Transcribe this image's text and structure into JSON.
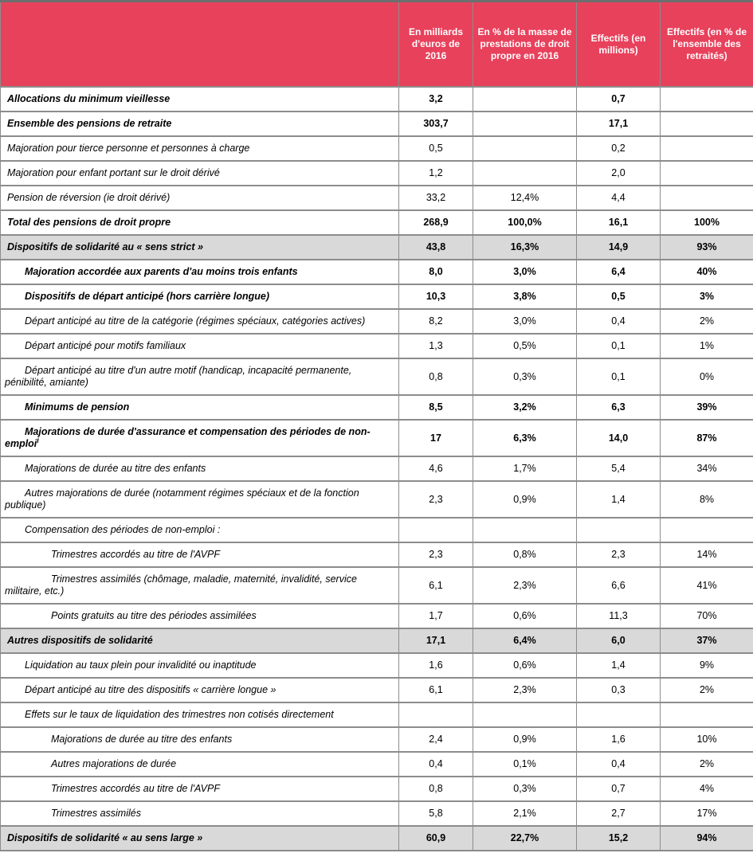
{
  "table": {
    "colors": {
      "header_bg": "#e8415c",
      "header_text": "#ffffff",
      "border": "#8c8c8c",
      "highlight_row_bg": "#d9d9d9"
    },
    "columns": [
      {
        "label": ""
      },
      {
        "label": "En milliards d'euros de 2016"
      },
      {
        "label": "En % de la masse de prestations de droit propre en 2016"
      },
      {
        "label": "Effectifs (en millions)"
      },
      {
        "label": "Effectifs (en % de l'ensemble des retraités)"
      }
    ],
    "rows": [
      {
        "label": "Allocations du minimum vieillesse",
        "bold": true,
        "indent": 0,
        "highlight": false,
        "values": [
          "3,2",
          "",
          "0,7",
          ""
        ]
      },
      {
        "label": "Ensemble des pensions de retraite",
        "bold": true,
        "indent": 0,
        "highlight": false,
        "values": [
          "303,7",
          "",
          "17,1",
          ""
        ]
      },
      {
        "label": "Majoration pour tierce personne et personnes à charge",
        "bold": false,
        "indent": 0,
        "highlight": false,
        "values": [
          "0,5",
          "",
          "0,2",
          ""
        ]
      },
      {
        "label": "Majoration pour enfant portant sur le droit dérivé",
        "bold": false,
        "indent": 0,
        "highlight": false,
        "values": [
          "1,2",
          "",
          "2,0",
          ""
        ]
      },
      {
        "label": "Pension de réversion (ie droit dérivé)",
        "bold": false,
        "indent": 0,
        "highlight": false,
        "values": [
          "33,2",
          "12,4%",
          "4,4",
          ""
        ]
      },
      {
        "label": "Total des pensions de droit propre",
        "bold": true,
        "indent": 0,
        "highlight": false,
        "values": [
          "268,9",
          "100,0%",
          "16,1",
          "100%"
        ]
      },
      {
        "label": "Dispositifs de solidarité au « sens strict »",
        "bold": true,
        "indent": 0,
        "highlight": true,
        "values": [
          "43,8",
          "16,3%",
          "14,9",
          "93%"
        ]
      },
      {
        "label": "Majoration accordée aux parents d'au moins trois enfants",
        "bold": true,
        "indent": 1,
        "highlight": false,
        "values": [
          "8,0",
          "3,0%",
          "6,4",
          "40%"
        ]
      },
      {
        "label": "Dispositifs de départ anticipé (hors carrière longue)",
        "bold": true,
        "indent": 1,
        "highlight": false,
        "values": [
          "10,3",
          "3,8%",
          "0,5",
          "3%"
        ]
      },
      {
        "label": "Départ anticipé au titre de la catégorie (régimes spéciaux, catégories actives)",
        "bold": false,
        "indent": 1,
        "highlight": false,
        "values": [
          "8,2",
          "3,0%",
          "0,4",
          "2%"
        ]
      },
      {
        "label": "Départ anticipé pour motifs familiaux",
        "bold": false,
        "indent": 1,
        "highlight": false,
        "values": [
          "1,3",
          "0,5%",
          "0,1",
          "1%"
        ]
      },
      {
        "label": "Départ anticipé au titre d'un autre motif (handicap, incapacité permanente, pénibilité, amiante)",
        "bold": false,
        "indent": 1,
        "highlight": false,
        "values": [
          "0,8",
          "0,3%",
          "0,1",
          "0%"
        ]
      },
      {
        "label": "Minimums de pension",
        "bold": true,
        "indent": 1,
        "highlight": false,
        "values": [
          "8,5",
          "3,2%",
          "6,3",
          "39%"
        ]
      },
      {
        "label": "Majorations de durée d'assurance et compensation des périodes de non-emploi",
        "label_sup": "i",
        "bold": true,
        "indent": 1,
        "highlight": false,
        "values": [
          "17",
          "6,3%",
          "14,0",
          "87%"
        ]
      },
      {
        "label": "Majorations de durée au titre des enfants",
        "bold": false,
        "indent": 1,
        "highlight": false,
        "values": [
          "4,6",
          "1,7%",
          "5,4",
          "34%"
        ]
      },
      {
        "label": "Autres majorations de durée (notamment régimes spéciaux et de la fonction publique)",
        "bold": false,
        "indent": 1,
        "highlight": false,
        "values": [
          "2,3",
          "0,9%",
          "1,4",
          "8%"
        ]
      },
      {
        "label": "Compensation des périodes de non-emploi :",
        "bold": false,
        "indent": 1,
        "highlight": false,
        "values": [
          "",
          "",
          "",
          ""
        ]
      },
      {
        "label": "Trimestres accordés au titre de l'AVPF",
        "bold": false,
        "indent": 2,
        "highlight": false,
        "values": [
          "2,3",
          "0,8%",
          "2,3",
          "14%"
        ]
      },
      {
        "label": "Trimestres assimilés (chômage, maladie, maternité, invalidité, service militaire, etc.)",
        "bold": false,
        "indent": 2,
        "highlight": false,
        "values": [
          "6,1",
          "2,3%",
          "6,6",
          "41%"
        ]
      },
      {
        "label": "Points gratuits au titre des périodes assimilées",
        "bold": false,
        "indent": 2,
        "highlight": false,
        "values": [
          "1,7",
          "0,6%",
          "11,3",
          "70%"
        ]
      },
      {
        "label": "Autres dispositifs de solidarité",
        "bold": true,
        "indent": 0,
        "highlight": true,
        "values": [
          "17,1",
          "6,4%",
          "6,0",
          "37%"
        ]
      },
      {
        "label": "Liquidation au taux plein pour invalidité ou inaptitude",
        "bold": false,
        "indent": 1,
        "highlight": false,
        "values": [
          "1,6",
          "0,6%",
          "1,4",
          "9%"
        ]
      },
      {
        "label": "Départ anticipé au titre des dispositifs « carrière longue »",
        "bold": false,
        "indent": 1,
        "highlight": false,
        "values": [
          "6,1",
          "2,3%",
          "0,3",
          "2%"
        ]
      },
      {
        "label": "Effets sur le taux de liquidation des trimestres non cotisés directement",
        "bold": false,
        "indent": 1,
        "highlight": false,
        "values": [
          "",
          "",
          "",
          ""
        ]
      },
      {
        "label": "Majorations de durée au titre des enfants",
        "bold": false,
        "indent": 2,
        "highlight": false,
        "values": [
          "2,4",
          "0,9%",
          "1,6",
          "10%"
        ]
      },
      {
        "label": "Autres majorations de durée",
        "bold": false,
        "indent": 2,
        "highlight": false,
        "values": [
          "0,4",
          "0,1%",
          "0,4",
          "2%"
        ]
      },
      {
        "label": "Trimestres accordés au titre de l'AVPF",
        "bold": false,
        "indent": 2,
        "highlight": false,
        "values": [
          "0,8",
          "0,3%",
          "0,7",
          "4%"
        ]
      },
      {
        "label": "Trimestres assimilés",
        "bold": false,
        "indent": 2,
        "highlight": false,
        "values": [
          "5,8",
          "2,1%",
          "2,7",
          "17%"
        ]
      },
      {
        "label": "Dispositifs de solidarité « au sens large »",
        "bold": true,
        "indent": 0,
        "highlight": true,
        "values": [
          "60,9",
          "22,7%",
          "15,2",
          "94%"
        ]
      }
    ]
  }
}
